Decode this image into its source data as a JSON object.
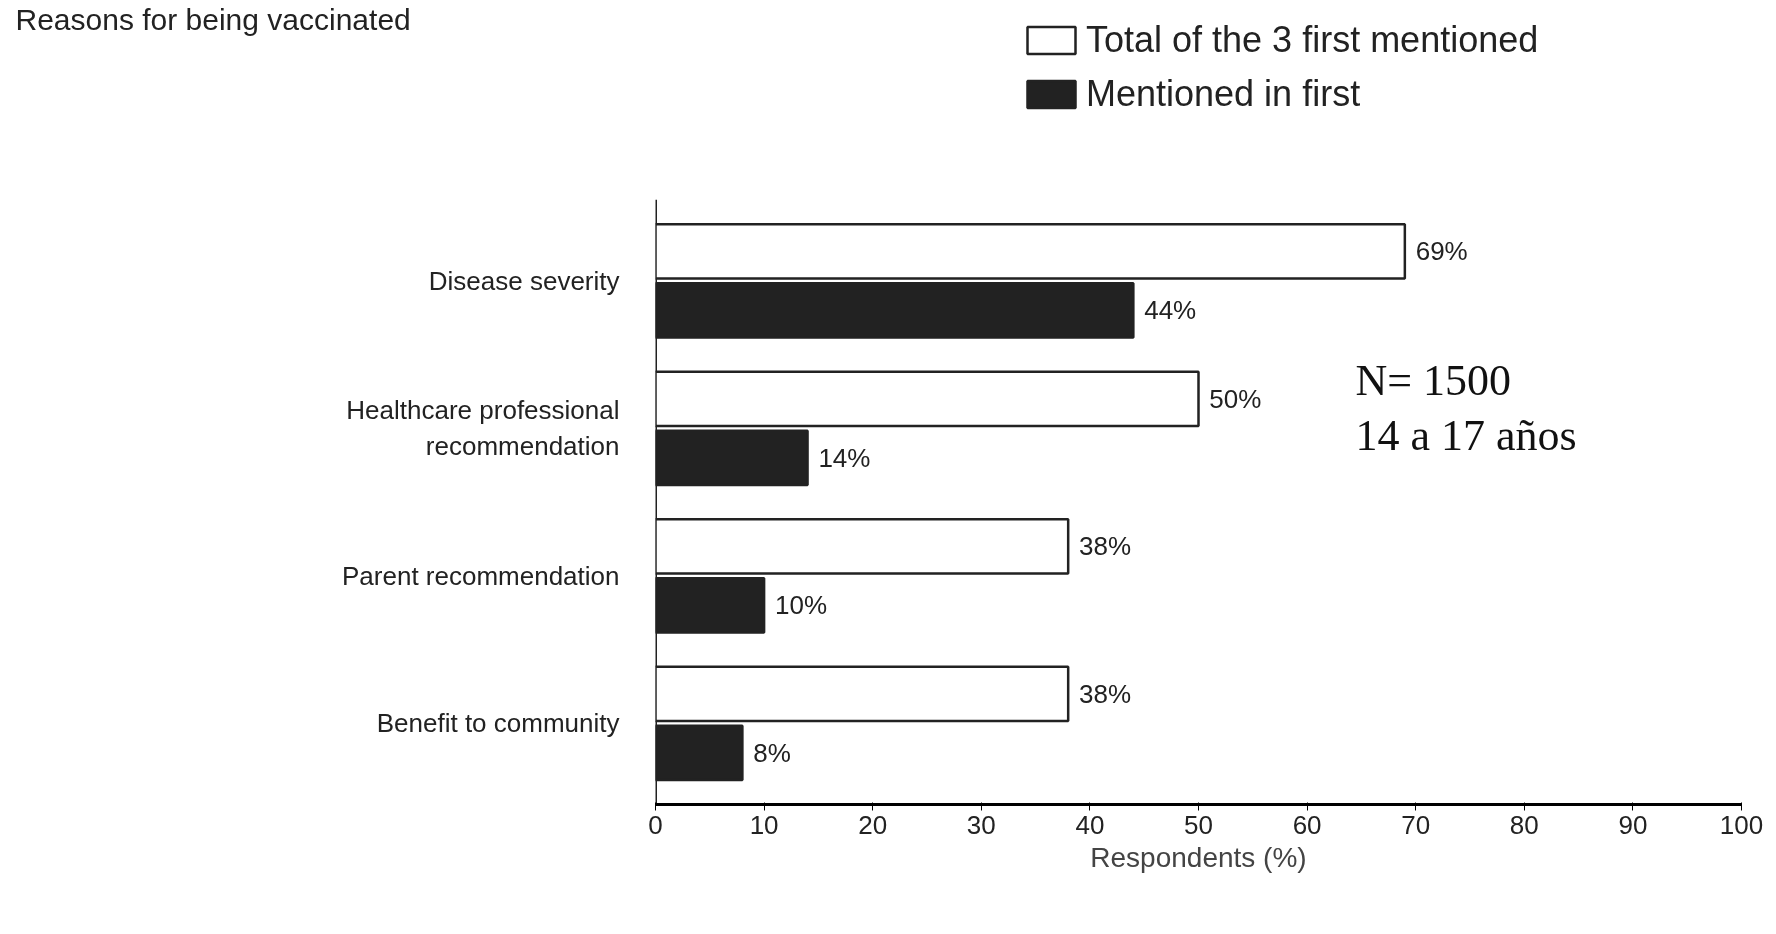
{
  "chart_data": {
    "type": "bar",
    "orientation": "horizontal",
    "title": "Reasons for being vaccinated",
    "xlabel": "Respondents (%)",
    "categories": [
      "Disease severity",
      "Healthcare professional recommendation",
      "Parent recommendation",
      "Benefit to community"
    ],
    "series": [
      {
        "name": "Total of the 3 first mentioned",
        "color": "#ffffff",
        "values": [
          69,
          50,
          38,
          38
        ],
        "value_labels": [
          "69%",
          "50%",
          "38%",
          "38%"
        ]
      },
      {
        "name": "Mentioned in first",
        "color": "#222222",
        "values": [
          44,
          14,
          10,
          8
        ],
        "value_labels": [
          "44%",
          "14%",
          "10%",
          "8%"
        ]
      }
    ],
    "xlim": [
      0,
      100
    ],
    "xticks": [
      0,
      10,
      20,
      30,
      40,
      50,
      60,
      70,
      80,
      90,
      100
    ],
    "grid": false,
    "legend": "top right",
    "annotations": [
      "N= 1500",
      "14 a 17 años"
    ]
  }
}
